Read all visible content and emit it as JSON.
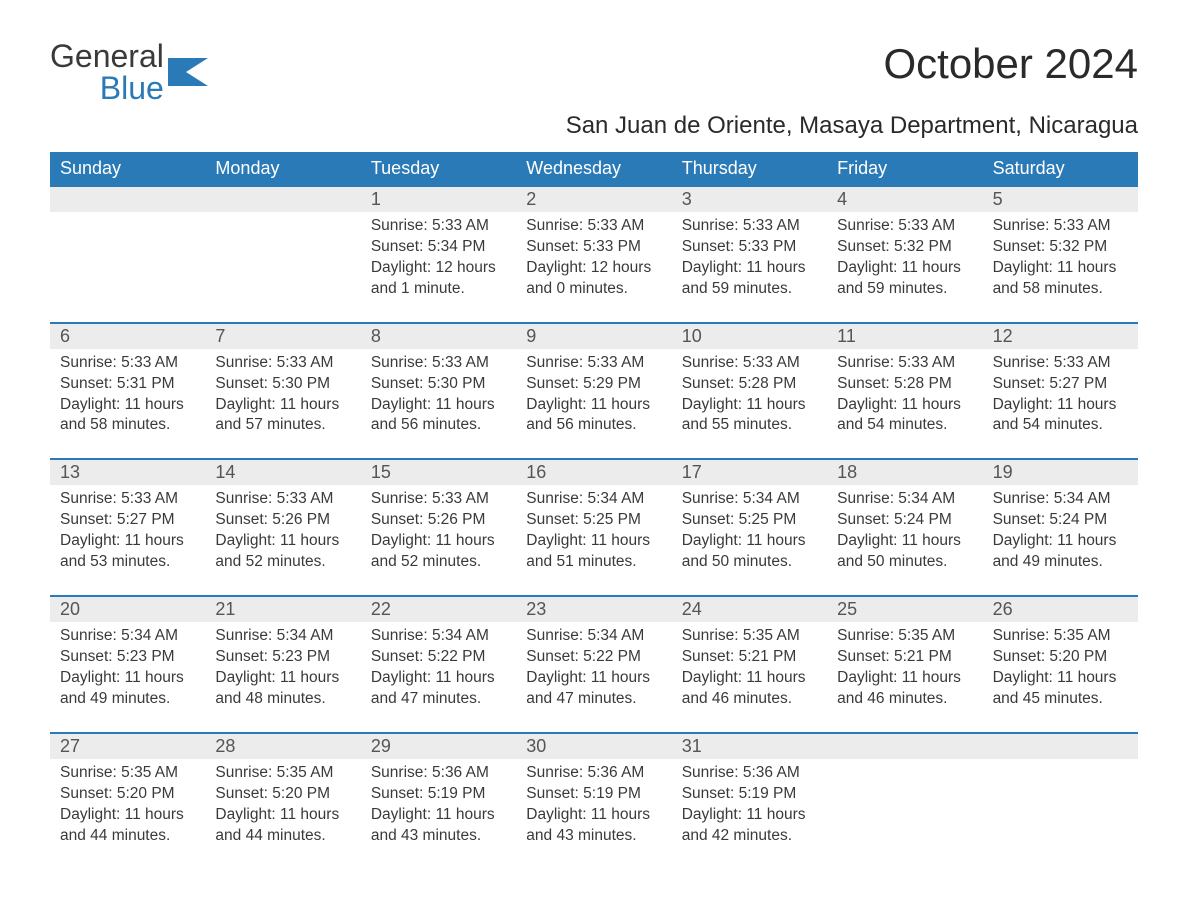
{
  "brand": {
    "line1": "General",
    "line2": "Blue"
  },
  "title": "October 2024",
  "subtitle": "San Juan de Oriente, Masaya Department, Nicaragua",
  "colors": {
    "header_bg": "#2a7ab8",
    "header_text": "#ffffff",
    "daynum_bg": "#ececec",
    "row_border": "#2a7ab8",
    "body_text": "#3a3a3a",
    "page_bg": "#ffffff"
  },
  "layout": {
    "columns": 7,
    "title_fontsize": 42,
    "subtitle_fontsize": 24,
    "weekday_fontsize": 18,
    "daynum_fontsize": 18,
    "details_fontsize": 15.5
  },
  "weekdays": [
    "Sunday",
    "Monday",
    "Tuesday",
    "Wednesday",
    "Thursday",
    "Friday",
    "Saturday"
  ],
  "weeks": [
    [
      {
        "day": "",
        "sunrise": "",
        "sunset": "",
        "daylight": ""
      },
      {
        "day": "",
        "sunrise": "",
        "sunset": "",
        "daylight": ""
      },
      {
        "day": "1",
        "sunrise": "Sunrise: 5:33 AM",
        "sunset": "Sunset: 5:34 PM",
        "daylight": "Daylight: 12 hours and 1 minute."
      },
      {
        "day": "2",
        "sunrise": "Sunrise: 5:33 AM",
        "sunset": "Sunset: 5:33 PM",
        "daylight": "Daylight: 12 hours and 0 minutes."
      },
      {
        "day": "3",
        "sunrise": "Sunrise: 5:33 AM",
        "sunset": "Sunset: 5:33 PM",
        "daylight": "Daylight: 11 hours and 59 minutes."
      },
      {
        "day": "4",
        "sunrise": "Sunrise: 5:33 AM",
        "sunset": "Sunset: 5:32 PM",
        "daylight": "Daylight: 11 hours and 59 minutes."
      },
      {
        "day": "5",
        "sunrise": "Sunrise: 5:33 AM",
        "sunset": "Sunset: 5:32 PM",
        "daylight": "Daylight: 11 hours and 58 minutes."
      }
    ],
    [
      {
        "day": "6",
        "sunrise": "Sunrise: 5:33 AM",
        "sunset": "Sunset: 5:31 PM",
        "daylight": "Daylight: 11 hours and 58 minutes."
      },
      {
        "day": "7",
        "sunrise": "Sunrise: 5:33 AM",
        "sunset": "Sunset: 5:30 PM",
        "daylight": "Daylight: 11 hours and 57 minutes."
      },
      {
        "day": "8",
        "sunrise": "Sunrise: 5:33 AM",
        "sunset": "Sunset: 5:30 PM",
        "daylight": "Daylight: 11 hours and 56 minutes."
      },
      {
        "day": "9",
        "sunrise": "Sunrise: 5:33 AM",
        "sunset": "Sunset: 5:29 PM",
        "daylight": "Daylight: 11 hours and 56 minutes."
      },
      {
        "day": "10",
        "sunrise": "Sunrise: 5:33 AM",
        "sunset": "Sunset: 5:28 PM",
        "daylight": "Daylight: 11 hours and 55 minutes."
      },
      {
        "day": "11",
        "sunrise": "Sunrise: 5:33 AM",
        "sunset": "Sunset: 5:28 PM",
        "daylight": "Daylight: 11 hours and 54 minutes."
      },
      {
        "day": "12",
        "sunrise": "Sunrise: 5:33 AM",
        "sunset": "Sunset: 5:27 PM",
        "daylight": "Daylight: 11 hours and 54 minutes."
      }
    ],
    [
      {
        "day": "13",
        "sunrise": "Sunrise: 5:33 AM",
        "sunset": "Sunset: 5:27 PM",
        "daylight": "Daylight: 11 hours and 53 minutes."
      },
      {
        "day": "14",
        "sunrise": "Sunrise: 5:33 AM",
        "sunset": "Sunset: 5:26 PM",
        "daylight": "Daylight: 11 hours and 52 minutes."
      },
      {
        "day": "15",
        "sunrise": "Sunrise: 5:33 AM",
        "sunset": "Sunset: 5:26 PM",
        "daylight": "Daylight: 11 hours and 52 minutes."
      },
      {
        "day": "16",
        "sunrise": "Sunrise: 5:34 AM",
        "sunset": "Sunset: 5:25 PM",
        "daylight": "Daylight: 11 hours and 51 minutes."
      },
      {
        "day": "17",
        "sunrise": "Sunrise: 5:34 AM",
        "sunset": "Sunset: 5:25 PM",
        "daylight": "Daylight: 11 hours and 50 minutes."
      },
      {
        "day": "18",
        "sunrise": "Sunrise: 5:34 AM",
        "sunset": "Sunset: 5:24 PM",
        "daylight": "Daylight: 11 hours and 50 minutes."
      },
      {
        "day": "19",
        "sunrise": "Sunrise: 5:34 AM",
        "sunset": "Sunset: 5:24 PM",
        "daylight": "Daylight: 11 hours and 49 minutes."
      }
    ],
    [
      {
        "day": "20",
        "sunrise": "Sunrise: 5:34 AM",
        "sunset": "Sunset: 5:23 PM",
        "daylight": "Daylight: 11 hours and 49 minutes."
      },
      {
        "day": "21",
        "sunrise": "Sunrise: 5:34 AM",
        "sunset": "Sunset: 5:23 PM",
        "daylight": "Daylight: 11 hours and 48 minutes."
      },
      {
        "day": "22",
        "sunrise": "Sunrise: 5:34 AM",
        "sunset": "Sunset: 5:22 PM",
        "daylight": "Daylight: 11 hours and 47 minutes."
      },
      {
        "day": "23",
        "sunrise": "Sunrise: 5:34 AM",
        "sunset": "Sunset: 5:22 PM",
        "daylight": "Daylight: 11 hours and 47 minutes."
      },
      {
        "day": "24",
        "sunrise": "Sunrise: 5:35 AM",
        "sunset": "Sunset: 5:21 PM",
        "daylight": "Daylight: 11 hours and 46 minutes."
      },
      {
        "day": "25",
        "sunrise": "Sunrise: 5:35 AM",
        "sunset": "Sunset: 5:21 PM",
        "daylight": "Daylight: 11 hours and 46 minutes."
      },
      {
        "day": "26",
        "sunrise": "Sunrise: 5:35 AM",
        "sunset": "Sunset: 5:20 PM",
        "daylight": "Daylight: 11 hours and 45 minutes."
      }
    ],
    [
      {
        "day": "27",
        "sunrise": "Sunrise: 5:35 AM",
        "sunset": "Sunset: 5:20 PM",
        "daylight": "Daylight: 11 hours and 44 minutes."
      },
      {
        "day": "28",
        "sunrise": "Sunrise: 5:35 AM",
        "sunset": "Sunset: 5:20 PM",
        "daylight": "Daylight: 11 hours and 44 minutes."
      },
      {
        "day": "29",
        "sunrise": "Sunrise: 5:36 AM",
        "sunset": "Sunset: 5:19 PM",
        "daylight": "Daylight: 11 hours and 43 minutes."
      },
      {
        "day": "30",
        "sunrise": "Sunrise: 5:36 AM",
        "sunset": "Sunset: 5:19 PM",
        "daylight": "Daylight: 11 hours and 43 minutes."
      },
      {
        "day": "31",
        "sunrise": "Sunrise: 5:36 AM",
        "sunset": "Sunset: 5:19 PM",
        "daylight": "Daylight: 11 hours and 42 minutes."
      },
      {
        "day": "",
        "sunrise": "",
        "sunset": "",
        "daylight": ""
      },
      {
        "day": "",
        "sunrise": "",
        "sunset": "",
        "daylight": ""
      }
    ]
  ]
}
